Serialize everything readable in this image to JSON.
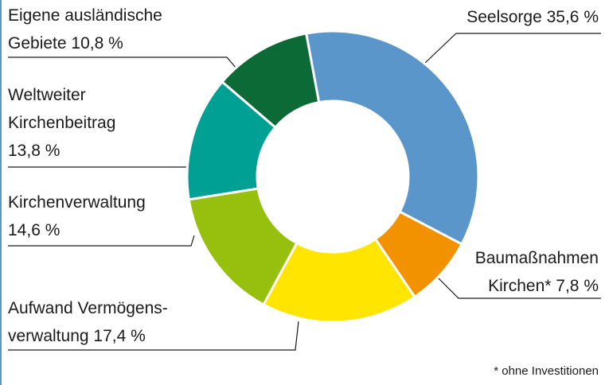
{
  "chart_data": {
    "type": "donut",
    "categories": [
      "Seelsorge",
      "Baumaßnahmen\nKirchen*",
      "Aufwand Vermögens-\nverwaltung",
      "Kirchenverwaltung",
      "Weltweiter\nKirchenbeitrag",
      "Eigene ausländische\nGebiete"
    ],
    "values": [
      35.6,
      7.8,
      17.4,
      14.6,
      13.8,
      10.8
    ],
    "value_labels": [
      "35,6 %",
      "7,8 %",
      "17,4 %",
      "14,6 %",
      "13,8 %",
      "10,8 %"
    ],
    "colors": [
      "#5b96cb",
      "#f39200",
      "#ffe500",
      "#97bf0d",
      "#00a094",
      "#0b6a35"
    ],
    "note": "* ohne Investitionen"
  }
}
